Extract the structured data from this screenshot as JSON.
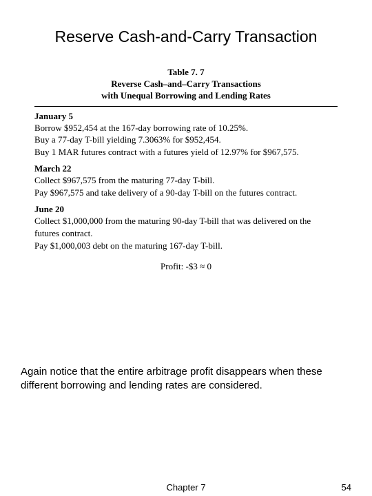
{
  "title": "Reserve Cash-and-Carry Transaction",
  "table": {
    "caption_line1": "Table 7. 7",
    "caption_line2": "Reverse Cash–and–Carry Transactions",
    "caption_line3": "with Unequal Borrowing and Lending Rates",
    "sections": [
      {
        "date": "January 5",
        "lines": [
          "Borrow $952,454 at the 167-day borrowing rate of 10.25%.",
          "Buy a 77-day T-bill yielding 7.3063% for $952,454.",
          "Buy 1 MAR futures contract with a futures yield of 12.97% for $967,575."
        ]
      },
      {
        "date": "March 22",
        "lines": [
          "Collect $967,575 from the maturing 77-day T-bill.",
          "Pay $967,575 and take delivery of a 90-day T-bill on the futures contract."
        ]
      },
      {
        "date": "June 20",
        "lines": [
          "Collect $1,000,000 from the maturing 90-day T-bill that was delivered on the futures contract.",
          "Pay $1,000,003 debt on the maturing 167-day T-bill."
        ]
      }
    ],
    "profit": "Profit: -$3 ≈ 0"
  },
  "note": "Again notice that the entire arbitrage profit disappears when these different borrowing and lending rates are considered.",
  "footer": {
    "chapter": "Chapter 7",
    "page": "54"
  }
}
